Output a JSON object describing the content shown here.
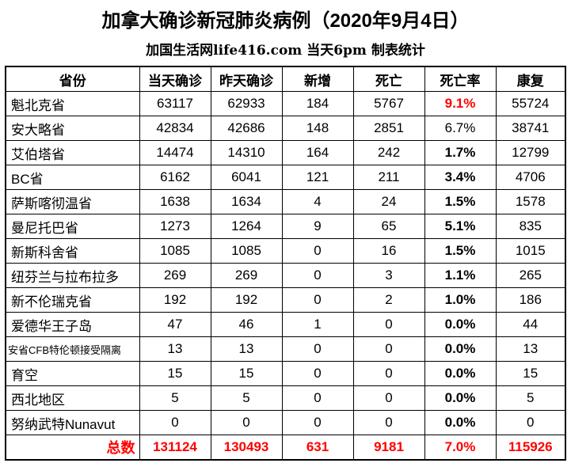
{
  "title": "加拿大确诊新冠肺炎病例（2020年9月4日）",
  "subtitle": "加国生活网life416.com 当天6pm 制表统计",
  "colors": {
    "highlight_red": "#ff0000",
    "text": "#000000",
    "border": "#000000",
    "background": "#ffffff"
  },
  "chart_data": {
    "type": "table",
    "title": "加拿大确诊新冠肺炎病例（2020年9月4日）",
    "subtitle": "加国生活网life416.com 当天6pm 制表统计",
    "columns": [
      "省份",
      "当天确诊",
      "昨天确诊",
      "新增",
      "死亡",
      "死亡率",
      "康复"
    ],
    "rows": [
      {
        "province": "魁北克省",
        "today": 63117,
        "yesterday": 62933,
        "new_cases": 184,
        "deaths": 5767,
        "death_rate": "9.1%",
        "recovered": 55724,
        "rate_bold": true,
        "rate_red": true
      },
      {
        "province": "安大略省",
        "today": 42834,
        "yesterday": 42686,
        "new_cases": 148,
        "deaths": 2851,
        "death_rate": "6.7%",
        "recovered": 38741,
        "rate_bold": false,
        "rate_red": false
      },
      {
        "province": "艾伯塔省",
        "today": 14474,
        "yesterday": 14310,
        "new_cases": 164,
        "deaths": 242,
        "death_rate": "1.7%",
        "recovered": 12799,
        "rate_bold": true,
        "rate_red": false
      },
      {
        "province": "BC省",
        "today": 6162,
        "yesterday": 6041,
        "new_cases": 121,
        "deaths": 211,
        "death_rate": "3.4%",
        "recovered": 4706,
        "rate_bold": true,
        "rate_red": false
      },
      {
        "province": "萨斯喀彻温省",
        "today": 1638,
        "yesterday": 1634,
        "new_cases": 4,
        "deaths": 24,
        "death_rate": "1.5%",
        "recovered": 1578,
        "rate_bold": true,
        "rate_red": false
      },
      {
        "province": "曼尼托巴省",
        "today": 1273,
        "yesterday": 1264,
        "new_cases": 9,
        "deaths": 65,
        "death_rate": "5.1%",
        "recovered": 835,
        "rate_bold": true,
        "rate_red": false
      },
      {
        "province": "新斯科舍省",
        "today": 1085,
        "yesterday": 1085,
        "new_cases": 0,
        "deaths": 16,
        "death_rate": "1.5%",
        "recovered": 1015,
        "rate_bold": true,
        "rate_red": false
      },
      {
        "province": "纽芬兰与拉布拉多",
        "today": 269,
        "yesterday": 269,
        "new_cases": 0,
        "deaths": 3,
        "death_rate": "1.1%",
        "recovered": 265,
        "rate_bold": true,
        "rate_red": false
      },
      {
        "province": "新不伦瑞克省",
        "today": 192,
        "yesterday": 192,
        "new_cases": 0,
        "deaths": 2,
        "death_rate": "1.0%",
        "recovered": 186,
        "rate_bold": true,
        "rate_red": false
      },
      {
        "province": "爱德华王子岛",
        "today": 47,
        "yesterday": 46,
        "new_cases": 1,
        "deaths": 0,
        "death_rate": "0.0%",
        "recovered": 44,
        "rate_bold": true,
        "rate_red": false
      },
      {
        "province": "安省CFB特伦顿接受隔离",
        "today": 13,
        "yesterday": 13,
        "new_cases": 0,
        "deaths": 0,
        "death_rate": "0.0%",
        "recovered": 13,
        "rate_bold": true,
        "rate_red": false,
        "small_font": true
      },
      {
        "province": "育空",
        "today": 15,
        "yesterday": 15,
        "new_cases": 0,
        "deaths": 0,
        "death_rate": "0.0%",
        "recovered": 15,
        "rate_bold": true,
        "rate_red": false
      },
      {
        "province": "西北地区",
        "today": 5,
        "yesterday": 5,
        "new_cases": 0,
        "deaths": 0,
        "death_rate": "0.0%",
        "recovered": 5,
        "rate_bold": true,
        "rate_red": false
      },
      {
        "province": "努纳武特Nunavut",
        "today": 0,
        "yesterday": 0,
        "new_cases": 0,
        "deaths": 0,
        "death_rate": "0.0%",
        "recovered": 0,
        "rate_bold": true,
        "rate_red": false
      }
    ],
    "total_row": {
      "label": "总数",
      "today": 131124,
      "yesterday": 130493,
      "new_cases": 631,
      "deaths": 9181,
      "death_rate": "7.0%",
      "recovered": 115926
    }
  }
}
